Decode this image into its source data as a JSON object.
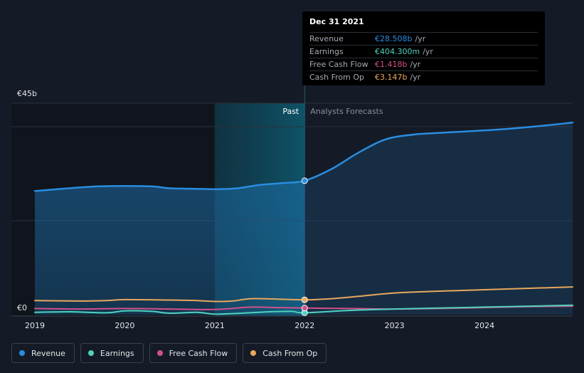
{
  "chart_data": {
    "type": "line",
    "currency": "€",
    "y_labels": [
      "€45b",
      "€0"
    ],
    "ylim": [
      0,
      45
    ],
    "xlim": [
      2019.0,
      2024.98
    ],
    "x_ticks": [
      "2019",
      "2020",
      "2021",
      "2022",
      "2023",
      "2024"
    ],
    "divider_x": 2022.0,
    "highlight_start_x": 2021.0,
    "past_label": "Past",
    "forecast_label": "Analysts Forecasts",
    "series": [
      {
        "name": "Revenue",
        "color": "#2a8de0",
        "area": true,
        "x": [
          2019.0,
          2019.25,
          2019.45,
          2019.7,
          2020.0,
          2020.3,
          2020.5,
          2020.75,
          2021.0,
          2021.25,
          2021.5,
          2021.75,
          2022.0,
          2022.3,
          2022.6,
          2022.9,
          2023.2,
          2023.5,
          2023.9,
          2024.3,
          2024.7,
          2024.98
        ],
        "y": [
          26.3,
          26.7,
          27.0,
          27.3,
          27.4,
          27.3,
          26.9,
          26.8,
          26.7,
          26.9,
          27.6,
          28.0,
          28.5,
          31.0,
          34.5,
          37.3,
          38.3,
          38.7,
          39.1,
          39.6,
          40.3,
          40.9
        ]
      },
      {
        "name": "Earnings",
        "color": "#4fd1bd",
        "x": [
          2019.0,
          2019.4,
          2019.8,
          2020.0,
          2020.3,
          2020.5,
          2020.8,
          2021.0,
          2021.3,
          2021.6,
          2021.85,
          2022.0,
          2022.5,
          2023.0,
          2023.5,
          2024.0,
          2024.5,
          2024.98
        ],
        "y": [
          0.5,
          0.6,
          0.4,
          0.8,
          0.7,
          0.3,
          0.5,
          0.1,
          0.3,
          0.6,
          0.7,
          0.4,
          0.9,
          1.2,
          1.4,
          1.6,
          1.8,
          2.0
        ]
      },
      {
        "name": "Free Cash Flow",
        "color": "#d1508c",
        "x": [
          2019.0,
          2019.5,
          2020.0,
          2020.5,
          2021.0,
          2021.4,
          2021.7,
          2022.0,
          2022.5,
          2023.0,
          2023.5,
          2024.0,
          2024.5,
          2024.98
        ],
        "y": [
          1.3,
          1.2,
          1.3,
          1.2,
          1.1,
          1.6,
          1.5,
          1.4,
          1.3,
          1.2,
          1.3,
          1.5,
          1.7,
          1.8
        ]
      },
      {
        "name": "Cash From Op",
        "color": "#e8a85c",
        "x": [
          2019.0,
          2019.5,
          2019.8,
          2020.0,
          2020.5,
          2020.8,
          2021.0,
          2021.2,
          2021.4,
          2021.7,
          2022.0,
          2022.3,
          2022.6,
          2023.0,
          2023.5,
          2024.0,
          2024.5,
          2024.98
        ],
        "y": [
          3.0,
          2.9,
          3.0,
          3.2,
          3.1,
          3.0,
          2.8,
          2.9,
          3.4,
          3.3,
          3.15,
          3.4,
          3.9,
          4.6,
          5.0,
          5.3,
          5.6,
          5.9
        ]
      }
    ]
  },
  "tooltip": {
    "date": "Dec 31 2021",
    "unit": "/yr",
    "rows": [
      {
        "name": "Revenue",
        "value": "€28.508b",
        "color": "#2a8de0"
      },
      {
        "name": "Earnings",
        "value": "€404.300m",
        "color": "#4fd1bd"
      },
      {
        "name": "Free Cash Flow",
        "value": "€1.418b",
        "color": "#d1508c"
      },
      {
        "name": "Cash From Op",
        "value": "€3.147b",
        "color": "#e8a85c"
      }
    ]
  },
  "legend": [
    {
      "label": "Revenue",
      "color": "#2a8de0"
    },
    {
      "label": "Earnings",
      "color": "#4fd1bd"
    },
    {
      "label": "Free Cash Flow",
      "color": "#d1508c"
    },
    {
      "label": "Cash From Op",
      "color": "#e8a85c"
    }
  ]
}
